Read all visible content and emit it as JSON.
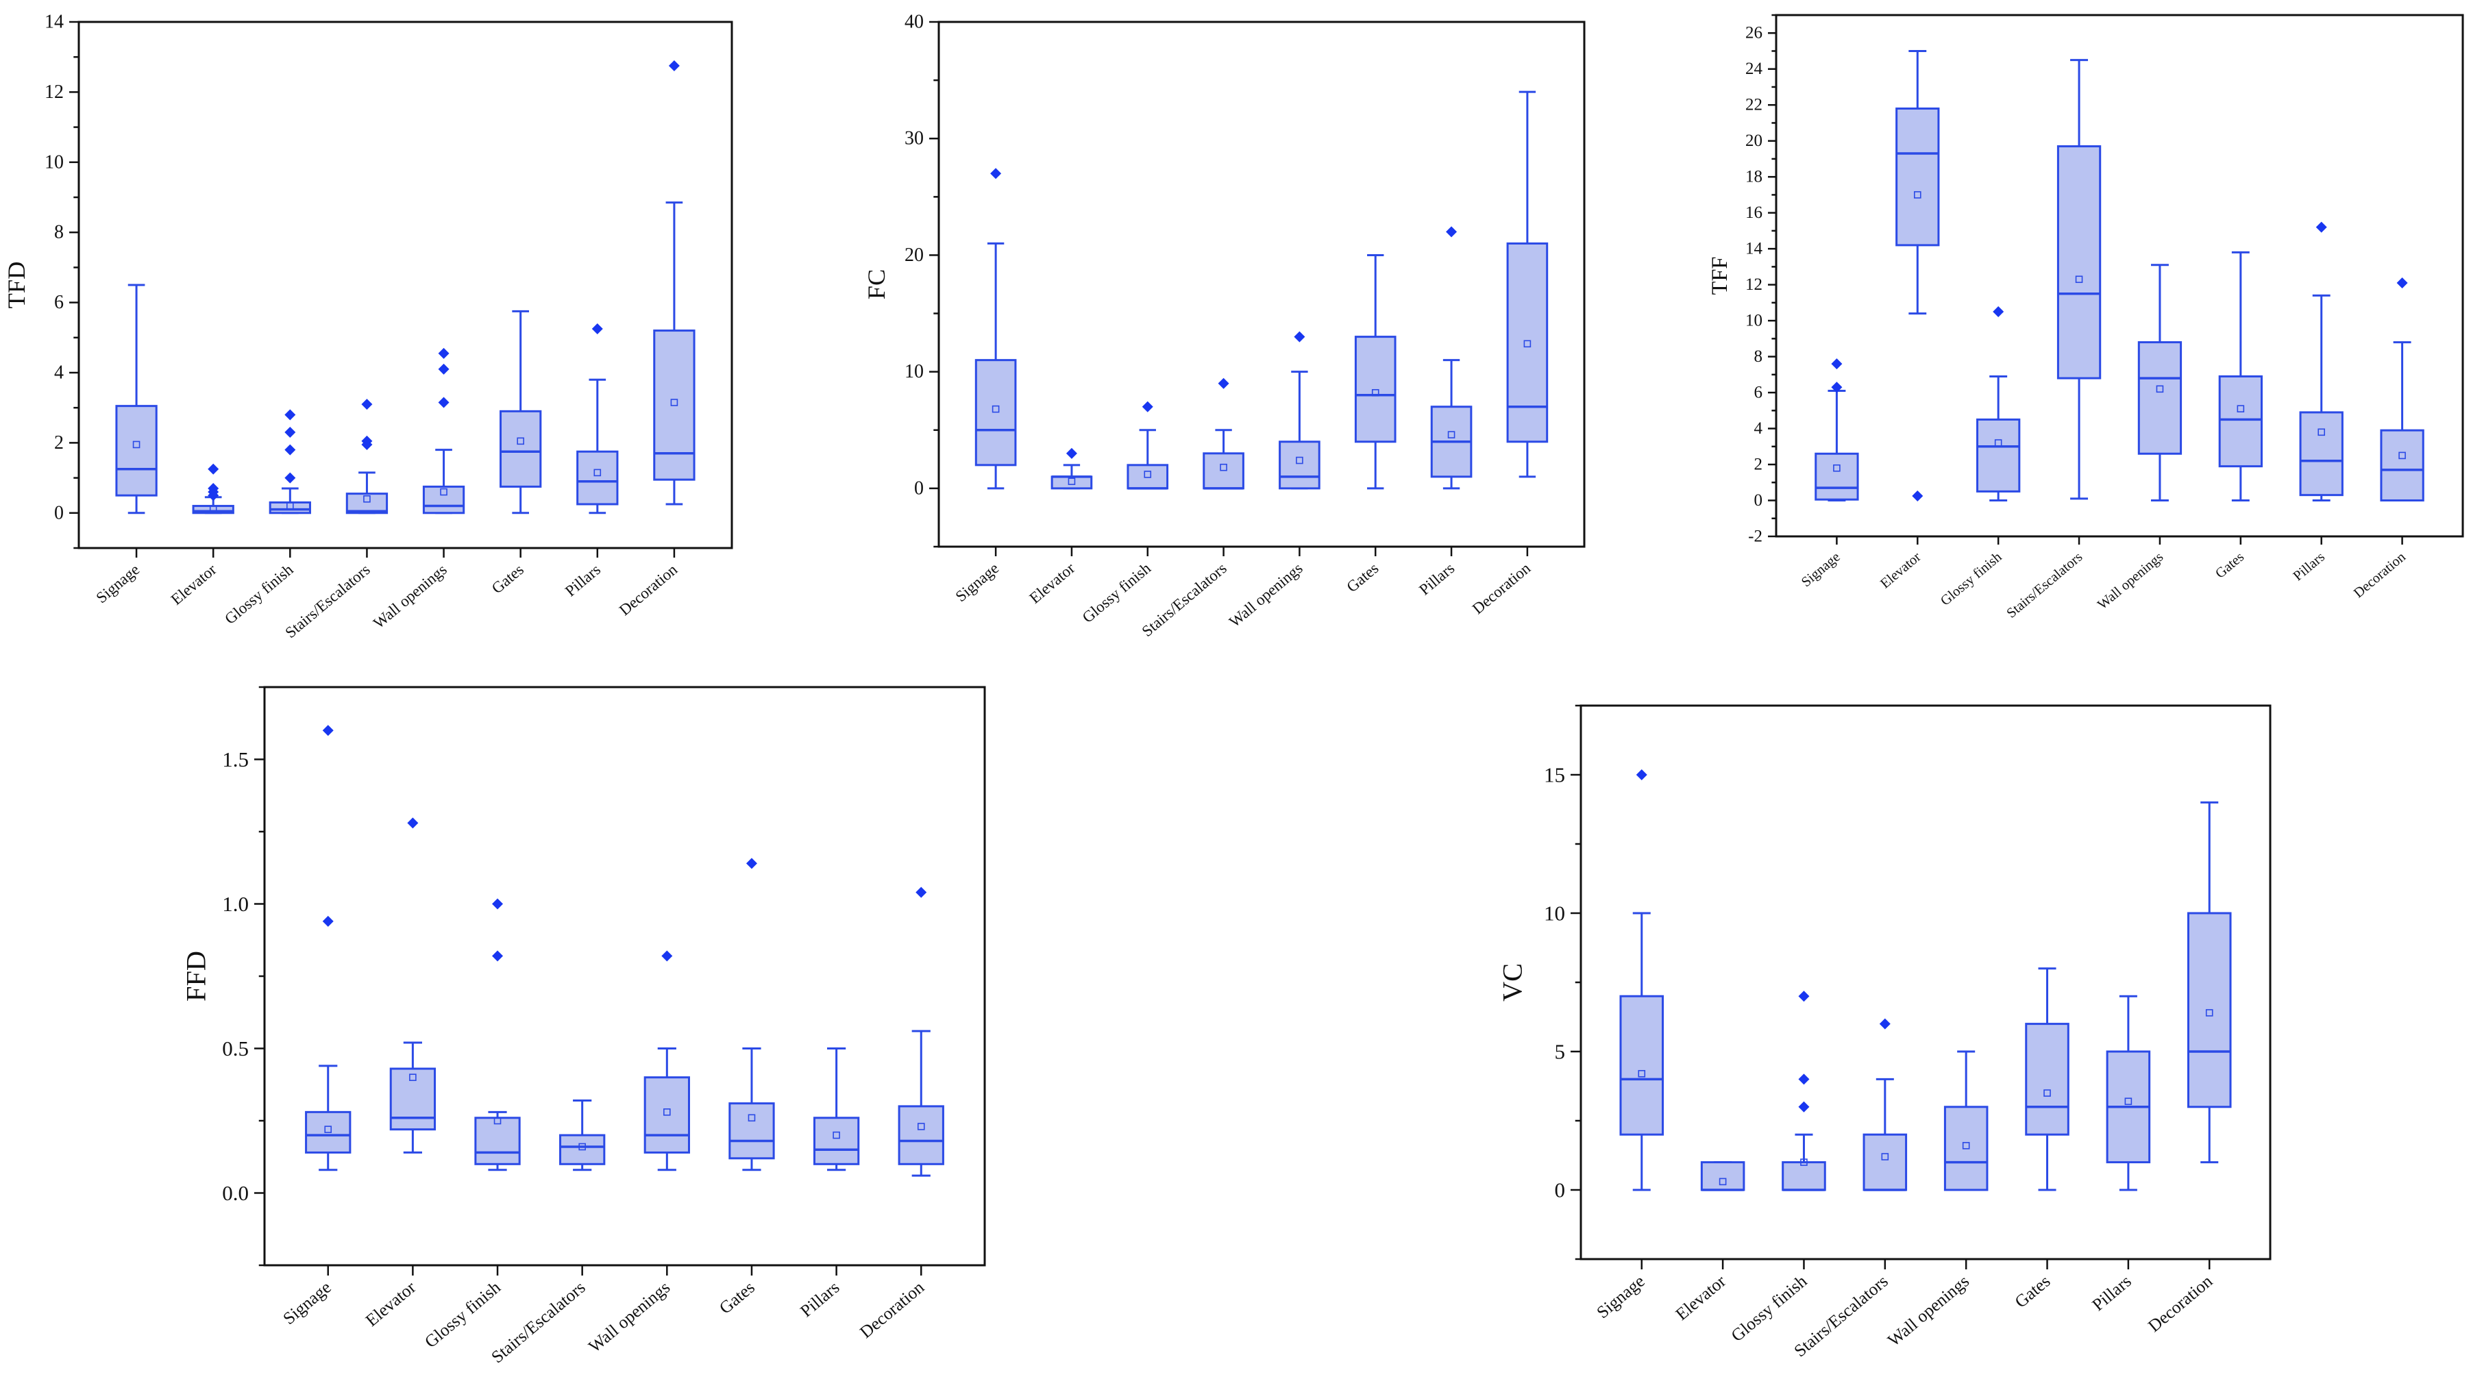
{
  "style": {
    "box_fill": "#b9c3f2",
    "stroke": "#2b4ae6",
    "point": "#1836f0",
    "axis": "#111111"
  },
  "chart_data": [
    {
      "id": "tfd",
      "type": "box",
      "ylabel": "TFD",
      "ylim": [
        -1,
        14
      ],
      "yticks": [
        0,
        2,
        4,
        6,
        8,
        10,
        12,
        14
      ],
      "categories": [
        "Signage",
        "Elevator",
        "Glossy finish",
        "Stairs/Escalators",
        "Wall openings",
        "Gates",
        "Pillars",
        "Decoration"
      ],
      "boxes": [
        {
          "min": 0,
          "q1": 0.5,
          "median": 1.25,
          "q3": 3.05,
          "max": 6.5,
          "mean": 1.95,
          "outliers": []
        },
        {
          "min": 0,
          "q1": 0,
          "median": 0.05,
          "q3": 0.2,
          "max": 0.45,
          "mean": 0.1,
          "outliers": [
            0.5,
            0.6,
            0.7,
            1.25
          ]
        },
        {
          "min": 0,
          "q1": 0,
          "median": 0.1,
          "q3": 0.3,
          "max": 0.7,
          "mean": 0.2,
          "outliers": [
            1.0,
            1.8,
            2.3,
            2.8
          ]
        },
        {
          "min": 0,
          "q1": 0,
          "median": 0.05,
          "q3": 0.55,
          "max": 1.15,
          "mean": 0.4,
          "outliers": [
            1.95,
            2.05,
            3.1
          ]
        },
        {
          "min": 0,
          "q1": 0,
          "median": 0.2,
          "q3": 0.75,
          "max": 1.8,
          "mean": 0.6,
          "outliers": [
            3.15,
            4.1,
            4.55
          ]
        },
        {
          "min": 0,
          "q1": 0.75,
          "median": 1.75,
          "q3": 2.9,
          "max": 5.75,
          "mean": 2.05,
          "outliers": []
        },
        {
          "min": 0,
          "q1": 0.25,
          "median": 0.9,
          "q3": 1.75,
          "max": 3.8,
          "mean": 1.15,
          "outliers": [
            5.25
          ]
        },
        {
          "min": 0.25,
          "q1": 0.95,
          "median": 1.7,
          "q3": 5.2,
          "max": 8.85,
          "mean": 3.15,
          "outliers": [
            12.75
          ]
        }
      ]
    },
    {
      "id": "fc",
      "type": "box",
      "ylabel": "FC",
      "ylim": [
        -5,
        40
      ],
      "yticks": [
        0,
        10,
        20,
        30,
        40
      ],
      "categories": [
        "Signage",
        "Elevator",
        "Glossy finish",
        "Stairs/Escalators",
        "Wall openings",
        "Gates",
        "Pillars",
        "Decoration"
      ],
      "boxes": [
        {
          "min": 0,
          "q1": 2,
          "median": 5,
          "q3": 11,
          "max": 21,
          "mean": 6.8,
          "outliers": [
            27
          ]
        },
        {
          "min": 0,
          "q1": 0,
          "median": 1,
          "q3": 1,
          "max": 2,
          "mean": 0.6,
          "outliers": [
            3
          ]
        },
        {
          "min": 0,
          "q1": 0,
          "median": 0,
          "q3": 2,
          "max": 5,
          "mean": 1.2,
          "outliers": [
            7
          ]
        },
        {
          "min": 0,
          "q1": 0,
          "median": 0,
          "q3": 3,
          "max": 5,
          "mean": 1.8,
          "outliers": [
            9
          ]
        },
        {
          "min": 0,
          "q1": 0,
          "median": 1,
          "q3": 4,
          "max": 10,
          "mean": 2.4,
          "outliers": [
            13
          ]
        },
        {
          "min": 0,
          "q1": 4,
          "median": 8,
          "q3": 13,
          "max": 20,
          "mean": 8.2,
          "outliers": []
        },
        {
          "min": 0,
          "q1": 1,
          "median": 4,
          "q3": 7,
          "max": 11,
          "mean": 4.6,
          "outliers": [
            22
          ]
        },
        {
          "min": 1,
          "q1": 4,
          "median": 7,
          "q3": 21,
          "max": 34,
          "mean": 12.4,
          "outliers": []
        }
      ]
    },
    {
      "id": "tff",
      "type": "box",
      "ylabel": "TFF",
      "ylim": [
        -2,
        27
      ],
      "yticks": [
        -2,
        0,
        2,
        4,
        6,
        8,
        10,
        12,
        14,
        16,
        18,
        20,
        22,
        24,
        26
      ],
      "categories": [
        "Signage",
        "Elevator",
        "Glossy finish",
        "Stairs/Escalators",
        "Wall openings",
        "Gates",
        "Pillars",
        "Decoration"
      ],
      "boxes": [
        {
          "min": 0,
          "q1": 0.05,
          "median": 0.7,
          "q3": 2.6,
          "max": 6.1,
          "mean": 1.8,
          "outliers": [
            6.3,
            7.6
          ]
        },
        {
          "min": 10.4,
          "q1": 14.2,
          "median": 19.3,
          "q3": 21.8,
          "max": 25,
          "mean": 17,
          "outliers": [
            0.25
          ]
        },
        {
          "min": 0,
          "q1": 0.5,
          "median": 3,
          "q3": 4.5,
          "max": 6.9,
          "mean": 3.2,
          "outliers": [
            10.5
          ]
        },
        {
          "min": 0.1,
          "q1": 6.8,
          "median": 11.5,
          "q3": 19.7,
          "max": 24.5,
          "mean": 12.3,
          "outliers": []
        },
        {
          "min": 0,
          "q1": 2.6,
          "median": 6.8,
          "q3": 8.8,
          "max": 13.1,
          "mean": 6.2,
          "outliers": []
        },
        {
          "min": 0,
          "q1": 1.9,
          "median": 4.5,
          "q3": 6.9,
          "max": 13.8,
          "mean": 5.1,
          "outliers": []
        },
        {
          "min": 0,
          "q1": 0.3,
          "median": 2.2,
          "q3": 4.9,
          "max": 11.4,
          "mean": 3.8,
          "outliers": [
            15.2
          ]
        },
        {
          "min": 0,
          "q1": 0,
          "median": 1.7,
          "q3": 3.9,
          "max": 8.8,
          "mean": 2.5,
          "outliers": [
            12.1
          ]
        }
      ]
    },
    {
      "id": "ffd",
      "type": "box",
      "ylabel": "FFD",
      "ylim": [
        -0.25,
        1.75
      ],
      "yticks": [
        0.0,
        0.5,
        1.0,
        1.5
      ],
      "ytick_labels": [
        "0.0",
        "0.5",
        "1.0",
        "1.5"
      ],
      "categories": [
        "Signage",
        "Elevator",
        "Glossy finish",
        "Stairs/Escalators",
        "Wall openings",
        "Gates",
        "Pillars",
        "Decoration"
      ],
      "boxes": [
        {
          "min": 0.08,
          "q1": 0.14,
          "median": 0.2,
          "q3": 0.28,
          "max": 0.44,
          "mean": 0.22,
          "outliers": [
            0.94,
            1.6
          ]
        },
        {
          "min": 0.14,
          "q1": 0.22,
          "median": 0.26,
          "q3": 0.43,
          "max": 0.52,
          "mean": 0.4,
          "outliers": [
            1.28
          ]
        },
        {
          "min": 0.08,
          "q1": 0.1,
          "median": 0.14,
          "q3": 0.26,
          "max": 0.28,
          "mean": 0.25,
          "outliers": [
            0.82,
            1.0
          ]
        },
        {
          "min": 0.08,
          "q1": 0.1,
          "median": 0.16,
          "q3": 0.2,
          "max": 0.32,
          "mean": 0.16,
          "outliers": []
        },
        {
          "min": 0.08,
          "q1": 0.14,
          "median": 0.2,
          "q3": 0.4,
          "max": 0.5,
          "mean": 0.28,
          "outliers": [
            0.82
          ]
        },
        {
          "min": 0.08,
          "q1": 0.12,
          "median": 0.18,
          "q3": 0.31,
          "max": 0.5,
          "mean": 0.26,
          "outliers": [
            1.14
          ]
        },
        {
          "min": 0.08,
          "q1": 0.1,
          "median": 0.15,
          "q3": 0.26,
          "max": 0.5,
          "mean": 0.2,
          "outliers": []
        },
        {
          "min": 0.06,
          "q1": 0.1,
          "median": 0.18,
          "q3": 0.3,
          "max": 0.56,
          "mean": 0.23,
          "outliers": [
            1.04
          ]
        }
      ]
    },
    {
      "id": "vc",
      "type": "box",
      "ylabel": "VC",
      "ylim": [
        -2.5,
        17.5
      ],
      "yticks": [
        0,
        5,
        10,
        15
      ],
      "categories": [
        "Signage",
        "Elevator",
        "Glossy finish",
        "Stairs/Escalators",
        "Wall openings",
        "Gates",
        "Pillars",
        "Decoration"
      ],
      "boxes": [
        {
          "min": 0,
          "q1": 2,
          "median": 4,
          "q3": 7,
          "max": 10,
          "mean": 4.2,
          "outliers": [
            15
          ]
        },
        {
          "min": 0,
          "q1": 0,
          "median": 0,
          "q3": 1,
          "max": 1,
          "mean": 0.3,
          "outliers": []
        },
        {
          "min": 0,
          "q1": 0,
          "median": 0,
          "q3": 1,
          "max": 2,
          "mean": 1.0,
          "outliers": [
            3,
            4,
            7
          ]
        },
        {
          "min": 0,
          "q1": 0,
          "median": 0,
          "q3": 2,
          "max": 4,
          "mean": 1.2,
          "outliers": [
            6
          ]
        },
        {
          "min": 0,
          "q1": 0,
          "median": 1,
          "q3": 3,
          "max": 5,
          "mean": 1.6,
          "outliers": []
        },
        {
          "min": 0,
          "q1": 2,
          "median": 3,
          "q3": 6,
          "max": 8,
          "mean": 3.5,
          "outliers": []
        },
        {
          "min": 0,
          "q1": 1,
          "median": 3,
          "q3": 5,
          "max": 7,
          "mean": 3.2,
          "outliers": []
        },
        {
          "min": 1,
          "q1": 3,
          "median": 5,
          "q3": 10,
          "max": 14,
          "mean": 6.4,
          "outliers": []
        }
      ]
    }
  ]
}
